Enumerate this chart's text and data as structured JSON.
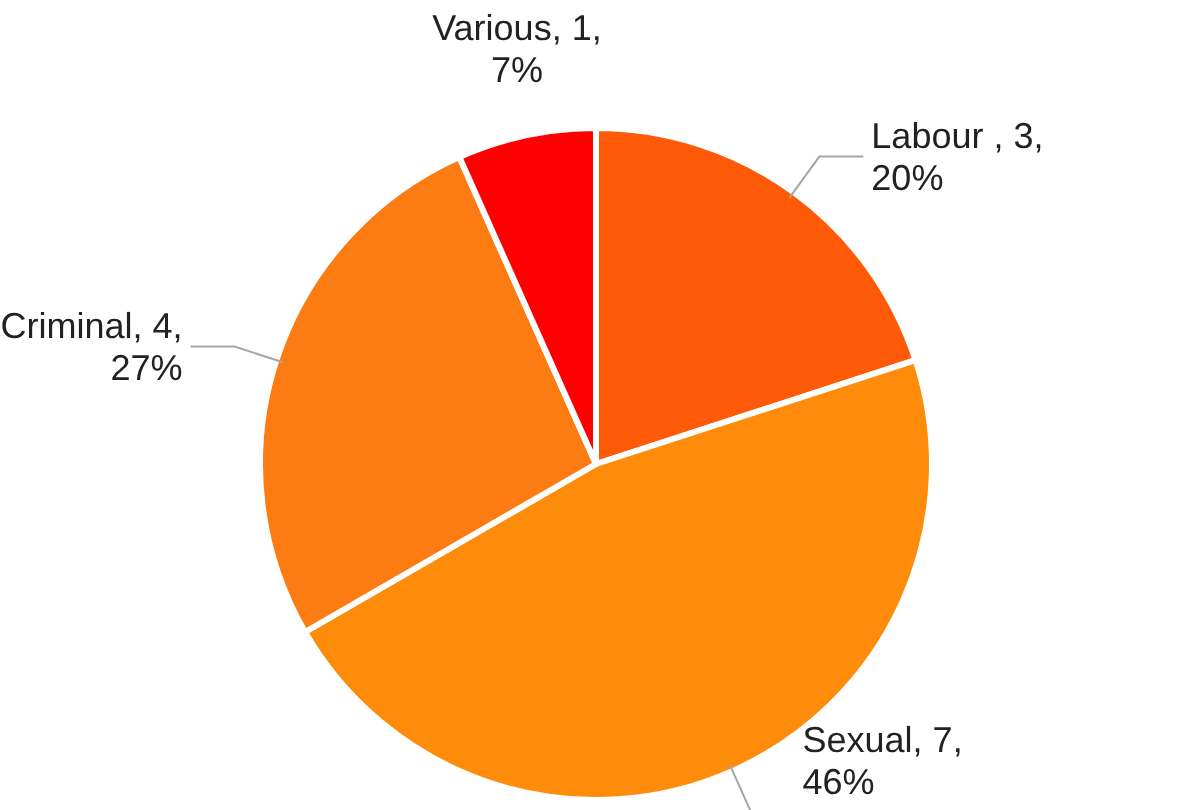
{
  "chart_data": {
    "type": "pie",
    "categories": [
      "Labour ",
      "Sexual",
      "Criminal",
      "Various"
    ],
    "values": [
      3,
      7,
      4,
      1
    ],
    "value_labels": [
      "3, 20%",
      "7, 46%",
      "4, 27%",
      "1, 7%"
    ],
    "colors": [
      "#fe5a08",
      "#fe8c0a",
      "#fc7b12",
      "#fe0000"
    ]
  }
}
